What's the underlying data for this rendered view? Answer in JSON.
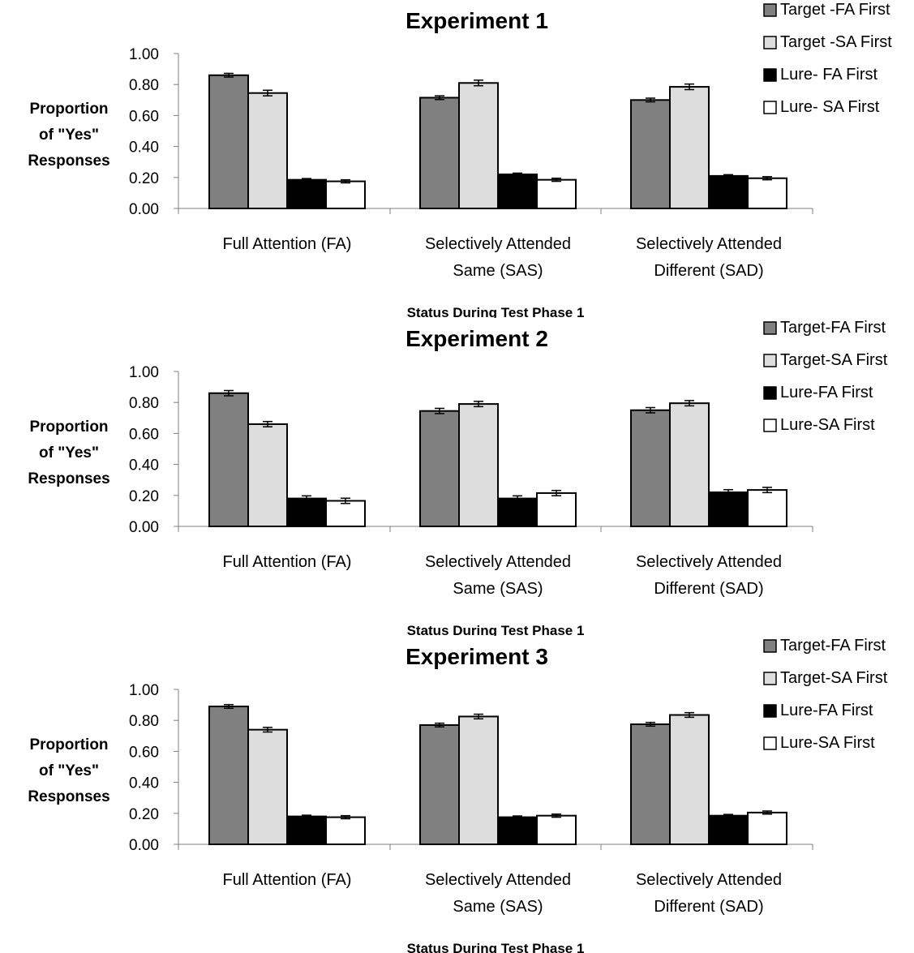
{
  "chart_data": [
    {
      "type": "bar",
      "title": "Experiment 1",
      "xlabel": "Status During Test Phase 1",
      "ylabel": [
        "Proportion",
        "of \"Yes\"",
        "Responses"
      ],
      "ylim": [
        0,
        1
      ],
      "yticks": [
        "0.00",
        "0.20",
        "0.40",
        "0.60",
        "0.80",
        "1.00"
      ],
      "categories": [
        [
          "Full Attention (FA)"
        ],
        [
          "Selectively Attended",
          "Same (SAS)"
        ],
        [
          "Selectively Attended",
          "Different (SAD)"
        ]
      ],
      "legend_position": "top-right",
      "series": [
        {
          "name": "Target -FA First",
          "color": "#808080",
          "values": [
            0.86,
            0.715,
            0.7
          ],
          "errors": [
            0.012,
            0.012,
            0.012
          ]
        },
        {
          "name": "Target -SA First",
          "color": "#dddddd",
          "values": [
            0.745,
            0.81,
            0.785
          ],
          "errors": [
            0.018,
            0.018,
            0.018
          ]
        },
        {
          "name": "Lure- FA First",
          "color": "#000000",
          "values": [
            0.185,
            0.22,
            0.21
          ],
          "errors": [
            0.008,
            0.008,
            0.008
          ]
        },
        {
          "name": "Lure- SA First",
          "color": "#ffffff",
          "values": [
            0.175,
            0.185,
            0.195
          ],
          "errors": [
            0.01,
            0.01,
            0.01
          ]
        }
      ]
    },
    {
      "type": "bar",
      "title": "Experiment 2",
      "xlabel": "Status During Test Phase 1",
      "ylabel": [
        "Proportion",
        "of \"Yes\"",
        "Responses"
      ],
      "ylim": [
        0,
        1
      ],
      "yticks": [
        "0.00",
        "0.20",
        "0.40",
        "0.60",
        "0.80",
        "1.00"
      ],
      "categories": [
        [
          "Full Attention (FA)"
        ],
        [
          "Selectively Attended",
          "Same (SAS)"
        ],
        [
          "Selectively Attended",
          "Different (SAD)"
        ]
      ],
      "legend_position": "top-right",
      "series": [
        {
          "name": "Target-FA First",
          "color": "#808080",
          "values": [
            0.86,
            0.745,
            0.75
          ],
          "errors": [
            0.017,
            0.017,
            0.017
          ]
        },
        {
          "name": "Target-SA First",
          "color": "#dddddd",
          "values": [
            0.66,
            0.79,
            0.795
          ],
          "errors": [
            0.017,
            0.017,
            0.017
          ]
        },
        {
          "name": "Lure-FA First",
          "color": "#000000",
          "values": [
            0.18,
            0.18,
            0.22
          ],
          "errors": [
            0.017,
            0.017,
            0.017
          ]
        },
        {
          "name": "Lure-SA First",
          "color": "#ffffff",
          "values": [
            0.165,
            0.215,
            0.235
          ],
          "errors": [
            0.017,
            0.017,
            0.017
          ]
        }
      ]
    },
    {
      "type": "bar",
      "title": "Experiment 3",
      "xlabel": "Status During Test Phase 1",
      "ylabel": [
        "Proportion",
        "of \"Yes\"",
        "Responses"
      ],
      "ylim": [
        0,
        1
      ],
      "yticks": [
        "0.00",
        "0.20",
        "0.40",
        "0.60",
        "0.80",
        "1.00"
      ],
      "categories": [
        [
          "Full Attention (FA)"
        ],
        [
          "Selectively Attended",
          "Same (SAS)"
        ],
        [
          "Selectively Attended",
          "Different (SAD)"
        ]
      ],
      "legend_position": "top-right",
      "series": [
        {
          "name": "Target-FA First",
          "color": "#808080",
          "values": [
            0.89,
            0.77,
            0.775
          ],
          "errors": [
            0.012,
            0.012,
            0.012
          ]
        },
        {
          "name": "Target-SA First",
          "color": "#dddddd",
          "values": [
            0.74,
            0.825,
            0.835
          ],
          "errors": [
            0.015,
            0.015,
            0.015
          ]
        },
        {
          "name": "Lure-FA First",
          "color": "#000000",
          "values": [
            0.18,
            0.175,
            0.185
          ],
          "errors": [
            0.008,
            0.008,
            0.008
          ]
        },
        {
          "name": "Lure-SA First",
          "color": "#ffffff",
          "values": [
            0.175,
            0.185,
            0.205
          ],
          "errors": [
            0.01,
            0.01,
            0.01
          ]
        }
      ]
    }
  ]
}
